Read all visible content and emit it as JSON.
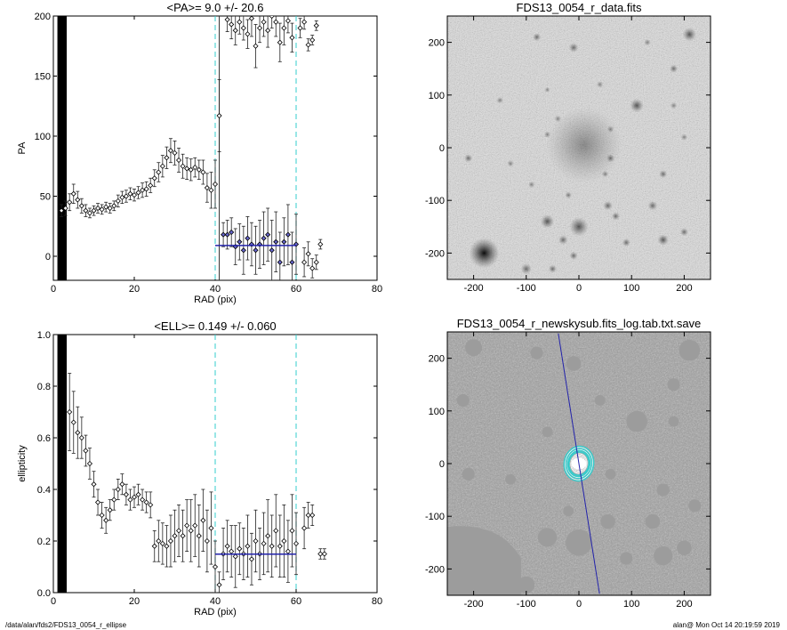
{
  "footer": {
    "path": "/data/alan/fds2/FDS13_0054_r_ellipse",
    "user_time": "alan@  Mon Oct 14 20:19:59 2019"
  },
  "colors": {
    "fit_line": "#2222aa",
    "guide": "#33cccc",
    "points": "#222222",
    "highlight": "#6666cc"
  },
  "chart_data": [
    {
      "id": "pa",
      "type": "scatter",
      "title": "<PA>=   9.0 +/-  20.6",
      "xlabel": "RAD (pix)",
      "ylabel": "PA",
      "xlim": [
        0,
        80
      ],
      "ylim": [
        -20,
        200
      ],
      "xticks": [
        0,
        20,
        40,
        60,
        80
      ],
      "yticks": [
        0,
        50,
        100,
        150,
        200
      ],
      "guides": [
        40,
        60
      ],
      "fit": {
        "x": [
          40,
          60
        ],
        "y": 9.0
      },
      "vline": 41,
      "points": [
        [
          2,
          38,
          5
        ],
        [
          3,
          40,
          6
        ],
        [
          4,
          45,
          7
        ],
        [
          5,
          52,
          8
        ],
        [
          6,
          47,
          7
        ],
        [
          7,
          42,
          6
        ],
        [
          8,
          38,
          5
        ],
        [
          9,
          36,
          4
        ],
        [
          10,
          38,
          4
        ],
        [
          11,
          40,
          4
        ],
        [
          12,
          39,
          4
        ],
        [
          13,
          41,
          4
        ],
        [
          14,
          40,
          4
        ],
        [
          15,
          42,
          4
        ],
        [
          16,
          46,
          5
        ],
        [
          17,
          49,
          5
        ],
        [
          18,
          50,
          5
        ],
        [
          19,
          52,
          5
        ],
        [
          20,
          51,
          5
        ],
        [
          21,
          53,
          5
        ],
        [
          22,
          55,
          6
        ],
        [
          23,
          56,
          6
        ],
        [
          24,
          59,
          6
        ],
        [
          25,
          65,
          7
        ],
        [
          26,
          70,
          8
        ],
        [
          27,
          75,
          9
        ],
        [
          28,
          82,
          9
        ],
        [
          29,
          88,
          10
        ],
        [
          30,
          86,
          10
        ],
        [
          31,
          80,
          10
        ],
        [
          32,
          75,
          10
        ],
        [
          33,
          73,
          9
        ],
        [
          34,
          72,
          9
        ],
        [
          35,
          74,
          8
        ],
        [
          36,
          72,
          8
        ],
        [
          37,
          70,
          10
        ],
        [
          38,
          57,
          12
        ],
        [
          39,
          55,
          15
        ],
        [
          40,
          60,
          20
        ],
        [
          41,
          117,
          30
        ],
        [
          42,
          18,
          10
        ],
        [
          43,
          18,
          12
        ],
        [
          44,
          20,
          12
        ],
        [
          45,
          8,
          15
        ],
        [
          46,
          12,
          15
        ],
        [
          47,
          5,
          20
        ],
        [
          48,
          15,
          18
        ],
        [
          49,
          10,
          18
        ],
        [
          50,
          5,
          20
        ],
        [
          51,
          10,
          20
        ],
        [
          52,
          15,
          22
        ],
        [
          53,
          18,
          22
        ],
        [
          54,
          5,
          25
        ],
        [
          55,
          12,
          25
        ],
        [
          56,
          -5,
          25
        ],
        [
          57,
          12,
          20
        ],
        [
          58,
          18,
          25
        ],
        [
          59,
          -5,
          25
        ],
        [
          60,
          10,
          25
        ],
        [
          62,
          -5,
          12
        ],
        [
          63,
          2,
          10
        ],
        [
          64,
          -10,
          8
        ],
        [
          65,
          -5,
          6
        ],
        [
          66,
          10,
          4
        ],
        [
          43,
          197,
          10
        ],
        [
          44,
          193,
          12
        ],
        [
          45,
          188,
          12
        ],
        [
          46,
          195,
          10
        ],
        [
          47,
          190,
          10
        ],
        [
          48,
          185,
          12
        ],
        [
          49,
          198,
          15
        ],
        [
          50,
          175,
          18
        ],
        [
          51,
          190,
          12
        ],
        [
          52,
          195,
          12
        ],
        [
          53,
          188,
          14
        ],
        [
          54,
          200,
          10
        ],
        [
          55,
          195,
          12
        ],
        [
          56,
          178,
          16
        ],
        [
          57,
          190,
          14
        ],
        [
          58,
          196,
          10
        ],
        [
          59,
          182,
          12
        ],
        [
          61,
          190,
          8
        ],
        [
          62,
          195,
          6
        ],
        [
          63,
          176,
          5
        ],
        [
          64,
          180,
          4
        ],
        [
          65,
          192,
          4
        ]
      ]
    },
    {
      "id": "ell",
      "type": "scatter",
      "title": "<ELL>= 0.149 +/-  0.060",
      "xlabel": "RAD (pix)",
      "ylabel": "ellipticity",
      "xlim": [
        0,
        80
      ],
      "ylim": [
        0,
        1
      ],
      "xticks": [
        0,
        20,
        40,
        60,
        80
      ],
      "yticks": [
        0.0,
        0.2,
        0.4,
        0.6,
        0.8,
        1.0
      ],
      "guides": [
        40,
        60
      ],
      "fit": {
        "x": [
          40,
          60
        ],
        "y": 0.149
      },
      "points": [
        [
          4,
          0.7,
          0.15
        ],
        [
          5,
          0.66,
          0.12
        ],
        [
          6,
          0.62,
          0.1
        ],
        [
          7,
          0.6,
          0.08
        ],
        [
          8,
          0.55,
          0.06
        ],
        [
          9,
          0.5,
          0.06
        ],
        [
          10,
          0.42,
          0.05
        ],
        [
          11,
          0.35,
          0.05
        ],
        [
          12,
          0.3,
          0.05
        ],
        [
          13,
          0.28,
          0.05
        ],
        [
          14,
          0.32,
          0.04
        ],
        [
          15,
          0.36,
          0.04
        ],
        [
          16,
          0.4,
          0.04
        ],
        [
          17,
          0.42,
          0.04
        ],
        [
          18,
          0.38,
          0.04
        ],
        [
          19,
          0.36,
          0.04
        ],
        [
          20,
          0.37,
          0.04
        ],
        [
          21,
          0.38,
          0.04
        ],
        [
          22,
          0.36,
          0.04
        ],
        [
          23,
          0.35,
          0.04
        ],
        [
          24,
          0.34,
          0.05
        ],
        [
          25,
          0.18,
          0.06
        ],
        [
          26,
          0.2,
          0.08
        ],
        [
          27,
          0.19,
          0.08
        ],
        [
          28,
          0.18,
          0.08
        ],
        [
          29,
          0.2,
          0.1
        ],
        [
          30,
          0.22,
          0.1
        ],
        [
          31,
          0.24,
          0.1
        ],
        [
          32,
          0.22,
          0.1
        ],
        [
          33,
          0.26,
          0.1
        ],
        [
          34,
          0.24,
          0.12
        ],
        [
          35,
          0.26,
          0.12
        ],
        [
          36,
          0.22,
          0.12
        ],
        [
          37,
          0.28,
          0.12
        ],
        [
          38,
          0.2,
          0.12
        ],
        [
          39,
          0.25,
          0.14
        ],
        [
          40,
          0.1,
          0.1
        ],
        [
          41,
          0.03,
          0.05
        ],
        [
          42,
          0.15,
          0.1
        ],
        [
          43,
          0.18,
          0.1
        ],
        [
          44,
          0.16,
          0.1
        ],
        [
          45,
          0.14,
          0.12
        ],
        [
          46,
          0.17,
          0.1
        ],
        [
          47,
          0.15,
          0.1
        ],
        [
          48,
          0.18,
          0.12
        ],
        [
          49,
          0.13,
          0.1
        ],
        [
          50,
          0.2,
          0.12
        ],
        [
          51,
          0.15,
          0.1
        ],
        [
          52,
          0.19,
          0.12
        ],
        [
          53,
          0.22,
          0.14
        ],
        [
          54,
          0.18,
          0.12
        ],
        [
          55,
          0.24,
          0.14
        ],
        [
          56,
          0.18,
          0.12
        ],
        [
          57,
          0.2,
          0.14
        ],
        [
          58,
          0.16,
          0.12
        ],
        [
          59,
          0.24,
          0.14
        ],
        [
          60,
          0.19,
          0.12
        ],
        [
          62,
          0.25,
          0.08
        ],
        [
          63,
          0.3,
          0.05
        ],
        [
          64,
          0.3,
          0.04
        ],
        [
          66,
          0.15,
          0.02
        ],
        [
          67,
          0.15,
          0.02
        ]
      ]
    },
    {
      "id": "img1",
      "type": "heatmap",
      "title": "FDS13_0054_r_data.fits",
      "xlim": [
        -250,
        250
      ],
      "ylim": [
        -250,
        250
      ],
      "xticks": [
        -200,
        -100,
        0,
        100,
        200
      ],
      "yticks": [
        -200,
        -100,
        0,
        100,
        200
      ],
      "sources": [
        [
          -180,
          -200,
          22,
          0.95
        ],
        [
          10,
          5,
          55,
          0.35
        ],
        [
          0,
          -150,
          14,
          0.6
        ],
        [
          110,
          80,
          10,
          0.6
        ],
        [
          -60,
          -140,
          10,
          0.6
        ],
        [
          210,
          215,
          10,
          0.6
        ],
        [
          -100,
          -230,
          8,
          0.5
        ],
        [
          -50,
          -230,
          6,
          0.5
        ],
        [
          -30,
          -175,
          7,
          0.5
        ],
        [
          160,
          -175,
          8,
          0.6
        ],
        [
          -10,
          -205,
          6,
          0.5
        ],
        [
          55,
          -110,
          7,
          0.5
        ],
        [
          70,
          -130,
          6,
          0.5
        ],
        [
          60,
          -20,
          6,
          0.5
        ],
        [
          140,
          -110,
          7,
          0.5
        ],
        [
          160,
          -50,
          6,
          0.5
        ],
        [
          -60,
          25,
          5,
          0.4
        ],
        [
          -40,
          55,
          5,
          0.4
        ],
        [
          -10,
          190,
          7,
          0.5
        ],
        [
          -80,
          210,
          6,
          0.5
        ],
        [
          -210,
          -20,
          6,
          0.5
        ],
        [
          -90,
          -70,
          5,
          0.4
        ],
        [
          50,
          -50,
          5,
          0.4
        ],
        [
          180,
          150,
          6,
          0.5
        ],
        [
          200,
          -160,
          6,
          0.5
        ],
        [
          -130,
          -30,
          5,
          0.4
        ],
        [
          -60,
          110,
          4,
          0.4
        ],
        [
          60,
          35,
          5,
          0.4
        ],
        [
          90,
          -180,
          6,
          0.5
        ],
        [
          200,
          20,
          5,
          0.4
        ],
        [
          -20,
          -90,
          5,
          0.45
        ],
        [
          130,
          200,
          5,
          0.4
        ],
        [
          -150,
          90,
          5,
          0.4
        ],
        [
          180,
          80,
          5,
          0.4
        ],
        [
          40,
          120,
          5,
          0.4
        ]
      ]
    },
    {
      "id": "img2",
      "type": "heatmap",
      "title": "FDS13_0054_r_newskysub.fits_log.tab.txt.save",
      "xlim": [
        -250,
        250
      ],
      "ylim": [
        -250,
        250
      ],
      "xticks": [
        -200,
        -100,
        0,
        100,
        200
      ],
      "yticks": [
        -200,
        -100,
        0,
        100,
        200
      ],
      "masks": [
        [
          -180,
          -200,
          55
        ],
        [
          0,
          -150,
          25
        ],
        [
          110,
          80,
          20
        ],
        [
          -60,
          -140,
          18
        ],
        [
          210,
          215,
          20
        ],
        [
          -100,
          -230,
          16
        ],
        [
          160,
          -175,
          18
        ],
        [
          55,
          -110,
          14
        ],
        [
          140,
          -110,
          14
        ],
        [
          160,
          -50,
          12
        ],
        [
          -10,
          190,
          14
        ],
        [
          -80,
          210,
          12
        ],
        [
          -210,
          -20,
          12
        ],
        [
          180,
          150,
          12
        ],
        [
          200,
          -160,
          14
        ],
        [
          90,
          -180,
          12
        ],
        [
          -200,
          220,
          16
        ],
        [
          -220,
          120,
          12
        ],
        [
          220,
          -80,
          12
        ],
        [
          -130,
          -30,
          10
        ],
        [
          -20,
          -90,
          10
        ],
        [
          60,
          -20,
          10
        ],
        [
          180,
          80,
          10
        ],
        [
          40,
          120,
          10
        ],
        [
          -60,
          60,
          10
        ]
      ],
      "pa_line": {
        "angle_deg": 9.0,
        "length": 500
      },
      "ellipses": [
        [
          3,
          2
        ],
        [
          6,
          4
        ],
        [
          10,
          7
        ],
        [
          14,
          10
        ],
        [
          18,
          13
        ],
        [
          22,
          17
        ],
        [
          26,
          21
        ],
        [
          30,
          25
        ],
        [
          34,
          28
        ],
        [
          40,
          33
        ],
        [
          48,
          40
        ],
        [
          56,
          47
        ]
      ],
      "guide_ellipses": [
        [
          40,
          34
        ],
        [
          45,
          38
        ],
        [
          52,
          44
        ],
        [
          60,
          51
        ]
      ]
    }
  ]
}
